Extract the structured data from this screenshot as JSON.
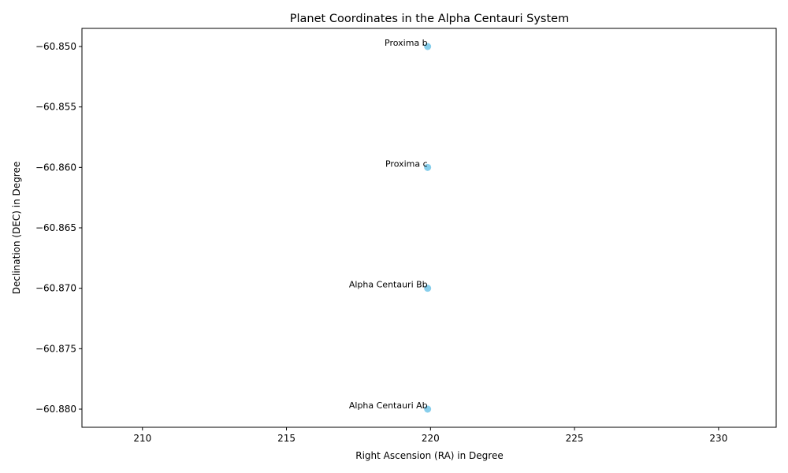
{
  "chart_data": {
    "type": "scatter",
    "title": "Planet Coordinates in the Alpha Centauri System",
    "xlabel": "Right Ascension (RA) in Degree",
    "ylabel": "Declination (DEC) in Degree",
    "xlim": [
      207.9,
      232.0
    ],
    "ylim": [
      -60.8815,
      -60.8485
    ],
    "xticks": [
      210,
      215,
      220,
      225,
      230
    ],
    "xtick_labels": [
      "210",
      "215",
      "220",
      "225",
      "230"
    ],
    "yticks": [
      -60.85,
      -60.855,
      -60.86,
      -60.865,
      -60.87,
      -60.875,
      -60.88
    ],
    "ytick_labels": [
      "−60.850",
      "−60.855",
      "−60.860",
      "−60.865",
      "−60.870",
      "−60.875",
      "−60.880"
    ],
    "grid": false,
    "marker_color": "#87ceeb",
    "points": [
      {
        "label": "Proxima b",
        "x": 219.9,
        "y": -60.85
      },
      {
        "label": "Proxima c",
        "x": 219.9,
        "y": -60.86
      },
      {
        "label": "Alpha Centauri Bb",
        "x": 219.9,
        "y": -60.87
      },
      {
        "label": "Alpha Centauri Ab",
        "x": 219.9,
        "y": -60.88
      }
    ]
  }
}
